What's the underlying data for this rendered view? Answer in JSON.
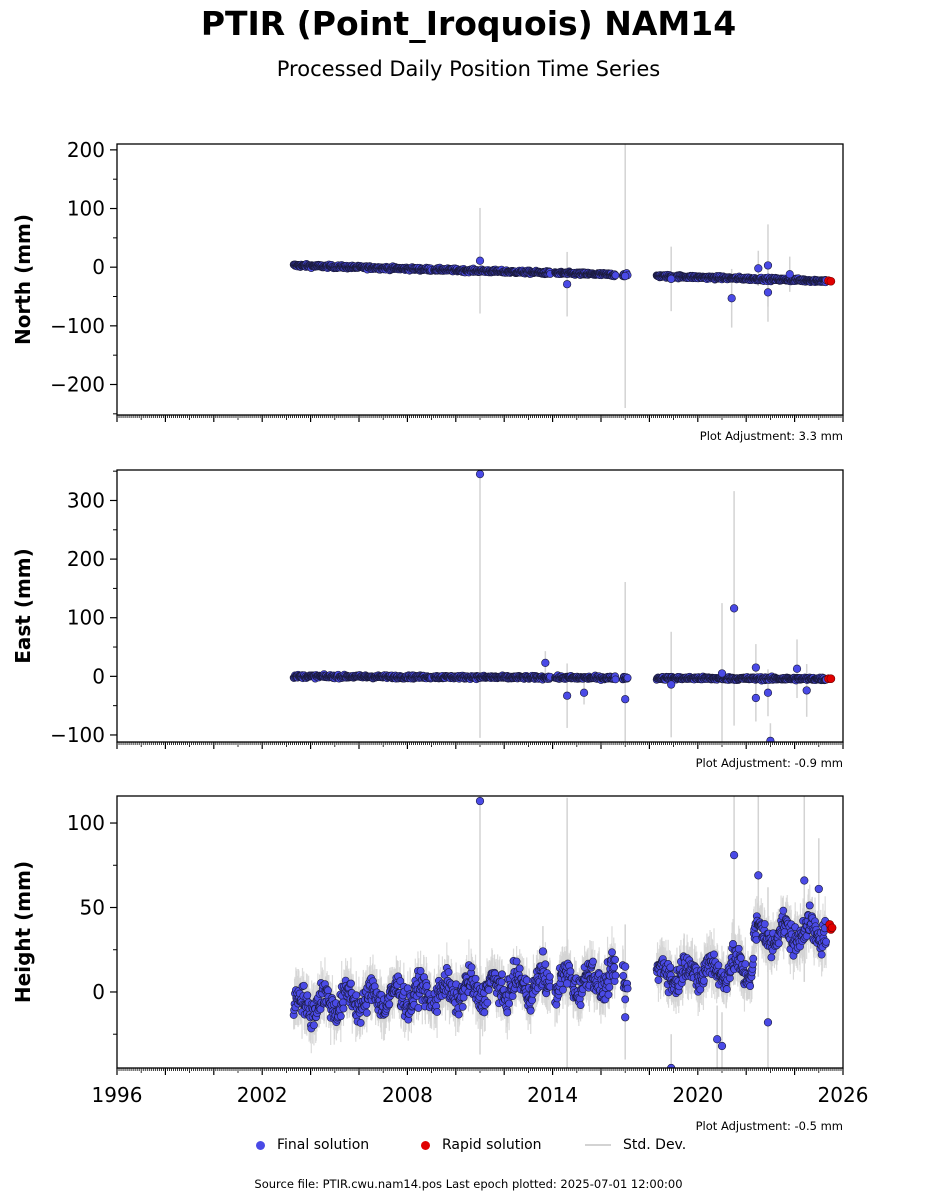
{
  "header": {
    "title": "PTIR (Point_Iroquois) NAM14",
    "subtitle": "Processed Daily Position Time Series"
  },
  "legend": {
    "final_label": "Final solution",
    "rapid_label": "Rapid solution",
    "std_label": "Std. Dev."
  },
  "footer": {
    "source": "Source file: PTIR.cwu.nam14.pos  Last epoch plotted: 2025-07-01 12:00:00"
  },
  "colors": {
    "final": "#4a4ae6",
    "rapid": "#e00000",
    "std": "#d3d3d3",
    "edge": "#1a1a3a"
  },
  "chart_data": [
    {
      "type": "scatter",
      "ylabel": "North (mm)",
      "adjustment": "Plot Adjustment: 3.3 mm",
      "xlim": [
        1996,
        2026
      ],
      "ylim": [
        -252,
        210
      ],
      "yticks": [
        -200,
        -100,
        0,
        100,
        200
      ],
      "trend": {
        "start": 3,
        "rate": -1.2,
        "noise": 2
      },
      "outliers": [
        {
          "x": 2011.0,
          "y": 11,
          "err": 90
        },
        {
          "x": 2014.6,
          "y": -29,
          "err": 55
        },
        {
          "x": 2017.0,
          "y": -15,
          "err": 225
        },
        {
          "x": 2018.9,
          "y": -20,
          "err": 55
        },
        {
          "x": 2021.4,
          "y": -53,
          "err": 50
        },
        {
          "x": 2022.5,
          "y": -2,
          "err": 30
        },
        {
          "x": 2022.9,
          "y": -43,
          "err": 50
        },
        {
          "x": 2022.9,
          "y": 3,
          "err": 70
        },
        {
          "x": 2023.8,
          "y": -12,
          "err": 30
        }
      ],
      "rapid": {
        "x": [
          2025.4,
          2025.5
        ],
        "y": [
          -23,
          -24
        ]
      }
    },
    {
      "type": "scatter",
      "ylabel": "East (mm)",
      "adjustment": "Plot Adjustment: -0.9 mm",
      "xlim": [
        1996,
        2026
      ],
      "ylim": [
        -112,
        352
      ],
      "yticks": [
        -100,
        0,
        100,
        200,
        300
      ],
      "trend": {
        "start": 0,
        "rate": -0.2,
        "noise": 2
      },
      "outliers": [
        {
          "x": 2011.0,
          "y": 345,
          "err": 450
        },
        {
          "x": 2013.7,
          "y": 23,
          "err": 20
        },
        {
          "x": 2014.6,
          "y": -33,
          "err": 55
        },
        {
          "x": 2015.3,
          "y": -28,
          "err": 20
        },
        {
          "x": 2017.0,
          "y": -39,
          "err": 200
        },
        {
          "x": 2018.9,
          "y": -14,
          "err": 90
        },
        {
          "x": 2021.0,
          "y": 5,
          "err": 120
        },
        {
          "x": 2021.5,
          "y": 116,
          "err": 200
        },
        {
          "x": 2022.4,
          "y": 15,
          "err": 40
        },
        {
          "x": 2022.4,
          "y": -37,
          "err": 40
        },
        {
          "x": 2022.9,
          "y": -28,
          "err": 40
        },
        {
          "x": 2023.0,
          "y": -110,
          "err": 30
        },
        {
          "x": 2024.1,
          "y": 13,
          "err": 50
        },
        {
          "x": 2024.5,
          "y": -24,
          "err": 45
        }
      ],
      "rapid": {
        "x": [
          2025.4,
          2025.5
        ],
        "y": [
          -4,
          -4
        ]
      }
    },
    {
      "type": "scatter",
      "ylabel": "Height (mm)",
      "adjustment": "Plot Adjustment: -0.5 mm",
      "xlabel_ticks": [
        "1996",
        "2002",
        "2008",
        "2014",
        "2020",
        "2026"
      ],
      "xlim": [
        1996,
        2026
      ],
      "ylim": [
        -45,
        116
      ],
      "yticks": [
        0,
        50,
        100
      ],
      "trend": {
        "start": -8,
        "rate": 1.2,
        "noise": 6
      },
      "outliers": [
        {
          "x": 2011.0,
          "y": 113,
          "err": 150
        },
        {
          "x": 2013.6,
          "y": 24,
          "err": 15
        },
        {
          "x": 2014.6,
          "y": 5,
          "err": 110
        },
        {
          "x": 2017.0,
          "y": 15,
          "err": 25
        },
        {
          "x": 2017.0,
          "y": -15,
          "err": 25
        },
        {
          "x": 2018.9,
          "y": -45,
          "err": 20
        },
        {
          "x": 2020.8,
          "y": -28,
          "err": 20
        },
        {
          "x": 2021.0,
          "y": -32,
          "err": 20
        },
        {
          "x": 2021.5,
          "y": 81,
          "err": 50
        },
        {
          "x": 2022.5,
          "y": 69,
          "err": 60
        },
        {
          "x": 2022.9,
          "y": -18,
          "err": 80
        },
        {
          "x": 2024.4,
          "y": 66,
          "err": 60
        },
        {
          "x": 2025.0,
          "y": 61,
          "err": 30
        }
      ],
      "rapid": {
        "x": [
          2025.45,
          2025.5,
          2025.55
        ],
        "y": [
          40,
          37,
          38
        ]
      }
    }
  ]
}
